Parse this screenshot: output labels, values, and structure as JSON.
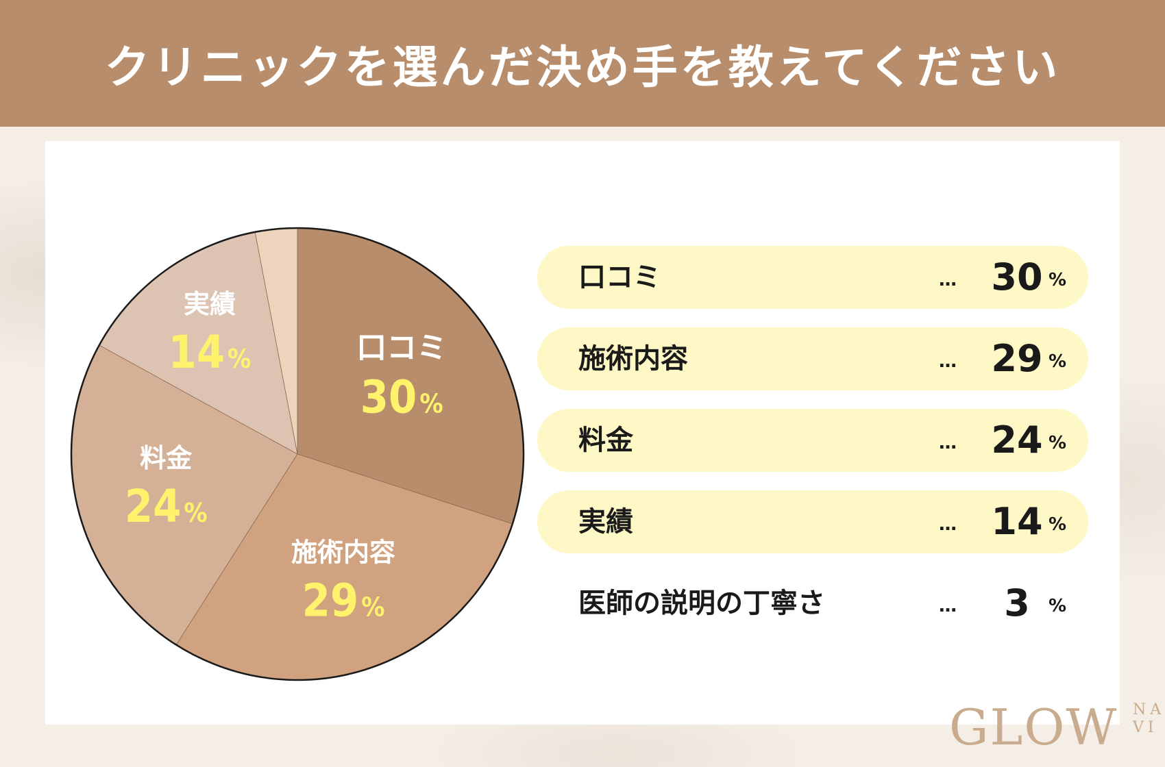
{
  "header": {
    "title": "クリニックを選んだ決め手を教えてください"
  },
  "chart_data": {
    "type": "pie",
    "title": "クリニックを選んだ決め手を教えてください",
    "unit": "%",
    "slices": [
      {
        "label": "口コミ",
        "value": 30,
        "color": "#b78d6b"
      },
      {
        "label": "施術内容",
        "value": 29,
        "color": "#d0a27f"
      },
      {
        "label": "料金",
        "value": 24,
        "color": "#d4b196"
      },
      {
        "label": "実績",
        "value": 14,
        "color": "#ddc3b1"
      },
      {
        "label": "医師の説明の丁寧さ",
        "value": 3,
        "color": "#edd4bd"
      }
    ]
  },
  "legend": {
    "dots": "…",
    "percent_sign": "%",
    "items": [
      {
        "label": "口コミ",
        "value": "30",
        "highlight": true
      },
      {
        "label": "施術内容",
        "value": "29",
        "highlight": true
      },
      {
        "label": "料金",
        "value": "24",
        "highlight": true
      },
      {
        "label": "実績",
        "value": "14",
        "highlight": true
      },
      {
        "label": "医師の説明の丁寧さ",
        "value": "3",
        "highlight": false
      }
    ]
  },
  "logo": {
    "main": "GLOW",
    "sub_top": "NA",
    "sub_bottom": "VI"
  },
  "colors": {
    "header": "#b78d6b",
    "value_highlight": "#fff26d",
    "legend_band": "#fdf8c6"
  }
}
